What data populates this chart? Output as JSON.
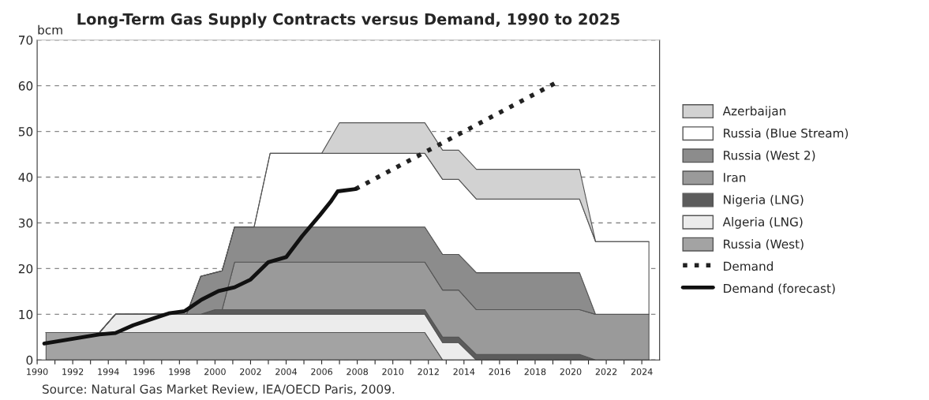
{
  "chart_data": {
    "type": "area",
    "stacked": true,
    "title": "Long-Term Gas Supply Contracts versus Demand, 1990 to 2025",
    "ylabel": "bcm",
    "annotations": [
      "Source: Natural Gas Market Review, IEA/OECD Paris, 2009."
    ],
    "x": [
      1990.5,
      1993.5,
      1994.4,
      1998.4,
      1999.2,
      2000,
      2000.4,
      2001.1,
      2002.2,
      2003.1,
      2006,
      2007,
      2011.8,
      2012.8,
      2013.7,
      2014.7,
      2020.5,
      2021.4,
      2024.4
    ],
    "series": [
      {
        "name": "Russia (West)",
        "color": "#a3a3a3",
        "values": [
          6,
          6,
          6,
          6,
          6,
          6,
          6,
          6,
          6,
          6,
          6,
          6,
          6,
          0,
          0,
          0,
          0,
          0,
          0
        ]
      },
      {
        "name": "Algeria (LNG)",
        "color": "#ececec",
        "values": [
          0,
          0,
          4,
          4,
          4,
          4,
          4,
          4,
          4,
          4,
          4,
          4,
          4,
          3.8,
          3.8,
          0,
          0,
          0,
          0
        ]
      },
      {
        "name": "Nigeria (LNG)",
        "color": "#5c5c5c",
        "values": [
          0,
          0,
          0,
          0,
          0,
          1,
          1,
          1,
          1,
          1,
          1,
          1,
          1,
          1.2,
          1.2,
          1.2,
          1.2,
          0,
          0
        ]
      },
      {
        "name": "Iran",
        "color": "#9a9a9a",
        "values": [
          0,
          0,
          0,
          0,
          0,
          0,
          0,
          10.4,
          10.4,
          10.4,
          10.4,
          10.4,
          10.4,
          10.3,
          10.3,
          9.8,
          9.8,
          10,
          10
        ]
      },
      {
        "name": "Russia (West 2)",
        "color": "#8c8c8c",
        "values": [
          0,
          0,
          0,
          0,
          8.3,
          8.1,
          8.5,
          7.7,
          7.7,
          7.7,
          7.7,
          7.7,
          7.7,
          7.8,
          7.8,
          8.1,
          8.1,
          0,
          0
        ]
      },
      {
        "name": "Russia (Blue Stream)",
        "color": "#ffffff",
        "values": [
          0,
          0,
          0,
          0,
          0,
          0,
          0,
          0,
          0,
          16.1,
          16.1,
          16.1,
          16.1,
          16.4,
          16.4,
          16.1,
          16.1,
          15.9,
          15.9
        ]
      },
      {
        "name": "Azerbaijan",
        "color": "#d2d2d2",
        "values": [
          0,
          0,
          0,
          0,
          0,
          0,
          0,
          0,
          0,
          0,
          0,
          6.7,
          6.7,
          6.4,
          6.4,
          6.5,
          6.5,
          0,
          0
        ]
      },
      {
        "name": "Demand",
        "type": "line",
        "color": "#222222",
        "line_style": "dotted",
        "x": [
          2007.9,
          2019.1
        ],
        "values": [
          37.4,
          60.5
        ]
      },
      {
        "name": "Demand (forecast)",
        "type": "line",
        "color": "#111111",
        "line_style": "solid",
        "x": [
          1990.4,
          1993.5,
          1994.4,
          1995.4,
          1996.7,
          1997.4,
          1998.3,
          1999.2,
          2000.2,
          2001.1,
          2002.0,
          2003.0,
          2004.0,
          2004.9,
          2005.9,
          2006.5,
          2006.9,
          2007.9
        ],
        "values": [
          3.6,
          5.6,
          5.9,
          7.6,
          9.3,
          10.2,
          10.7,
          13.1,
          15.1,
          15.9,
          17.6,
          21.4,
          22.5,
          27.1,
          31.7,
          34.6,
          36.9,
          37.4
        ]
      }
    ],
    "xlim": [
      1990,
      2025
    ],
    "ylim": [
      0,
      70
    ],
    "xticks": [
      1990,
      {
        "value": 1991,
        "label": null
      },
      1992,
      {
        "value": 1993,
        "label": null
      },
      1994,
      {
        "value": 1995,
        "label": null
      },
      1996,
      {
        "value": 1997,
        "label": null
      },
      1998,
      {
        "value": 1999,
        "label": null
      },
      2000,
      {
        "value": 2001,
        "label": null
      },
      2002,
      {
        "value": 2003,
        "label": null
      },
      2004,
      {
        "value": 2005,
        "label": null
      },
      2006,
      {
        "value": 2007,
        "label": null
      },
      2008,
      {
        "value": 2009,
        "label": null
      },
      2010,
      {
        "value": 2011,
        "label": null
      },
      2012,
      {
        "value": 2013,
        "label": null
      },
      2014,
      {
        "value": 2015,
        "label": null
      },
      2016,
      {
        "value": 2017,
        "label": null
      },
      2018,
      {
        "value": 2019,
        "label": null
      },
      2020,
      {
        "value": 2021,
        "label": null
      },
      2022,
      {
        "value": 2023,
        "label": null
      },
      2024
    ],
    "yticks": [
      0,
      10,
      20,
      30,
      40,
      50,
      60,
      70
    ],
    "grid": "y",
    "legend": "right"
  }
}
